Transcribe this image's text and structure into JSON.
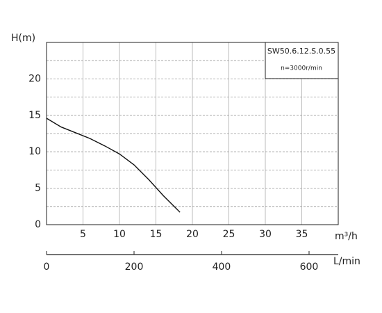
{
  "chart_data": {
    "type": "line",
    "y_label": "H(m)",
    "x_label": "m³/h",
    "x2_label": "L/min",
    "legend_title": "SW50.6.12.S.0.55",
    "legend_subtitle": "n=3000r/min",
    "x": [
      0,
      2,
      4,
      6,
      8,
      10,
      12,
      14,
      16,
      18.3
    ],
    "series": [
      {
        "name": "SW50.6.12.S.0.55",
        "color": "#111111",
        "values": [
          14.6,
          13.4,
          12.6,
          11.8,
          10.8,
          9.7,
          8.2,
          6.2,
          4.0,
          1.7
        ]
      }
    ],
    "xlim": [
      0,
      40
    ],
    "xticks": [
      5,
      10,
      15,
      20,
      25,
      30,
      35
    ],
    "ylim": [
      0,
      25
    ],
    "yticks": [
      0,
      5,
      10,
      15,
      20
    ],
    "y_minor_grid": [
      2.5,
      7.5,
      12.5,
      17.5,
      22.5
    ],
    "x2lim": [
      0,
      666.7
    ],
    "x2ticks": [
      0,
      200,
      400,
      600
    ],
    "grid": true
  }
}
